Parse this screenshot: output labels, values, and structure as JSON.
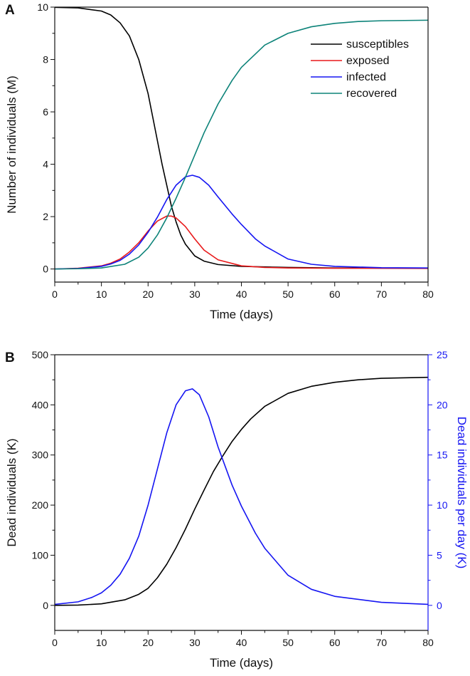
{
  "chart_data": [
    {
      "panel": "A",
      "type": "line",
      "xlabel": "Time (days)",
      "ylabel": "Number of individuals (M)",
      "xlim": [
        0,
        80
      ],
      "ylim": [
        -0.5,
        10
      ],
      "xticks": [
        0,
        10,
        20,
        30,
        40,
        50,
        60,
        70,
        80
      ],
      "yticks": [
        0,
        2,
        4,
        6,
        8,
        10
      ],
      "grid": false,
      "legend_position": "top-right",
      "series": [
        {
          "name": "susceptibles",
          "color": "#000000",
          "x": [
            0,
            5,
            10,
            12,
            14,
            16,
            18,
            20,
            21,
            22,
            23,
            24,
            25,
            26,
            27,
            28,
            30,
            32,
            35,
            40,
            50,
            60,
            80
          ],
          "y": [
            9.99,
            9.97,
            9.85,
            9.7,
            9.4,
            8.9,
            8.0,
            6.7,
            5.8,
            4.9,
            4.0,
            3.2,
            2.4,
            1.8,
            1.3,
            0.95,
            0.5,
            0.3,
            0.17,
            0.1,
            0.06,
            0.04,
            0.03
          ]
        },
        {
          "name": "exposed",
          "color": "#e8191a",
          "x": [
            0,
            5,
            10,
            12,
            14,
            16,
            18,
            20,
            22,
            24,
            25,
            26,
            28,
            30,
            32,
            35,
            40,
            45,
            50,
            60,
            80
          ],
          "y": [
            0.0,
            0.03,
            0.12,
            0.22,
            0.38,
            0.65,
            1.0,
            1.45,
            1.83,
            2.02,
            2.02,
            1.95,
            1.62,
            1.15,
            0.72,
            0.35,
            0.12,
            0.06,
            0.04,
            0.03,
            0.02
          ]
        },
        {
          "name": "infected",
          "color": "#1515f2",
          "x": [
            0,
            5,
            10,
            12,
            14,
            16,
            18,
            20,
            22,
            24,
            26,
            28,
            29.5,
            31,
            33,
            35,
            38,
            40,
            43,
            45,
            50,
            55,
            60,
            70,
            80
          ],
          "y": [
            0.0,
            0.02,
            0.1,
            0.19,
            0.33,
            0.57,
            0.92,
            1.4,
            1.98,
            2.65,
            3.2,
            3.52,
            3.58,
            3.5,
            3.2,
            2.75,
            2.1,
            1.7,
            1.15,
            0.88,
            0.38,
            0.18,
            0.1,
            0.05,
            0.04
          ]
        },
        {
          "name": "recovered",
          "color": "#0d8379",
          "x": [
            0,
            5,
            10,
            15,
            18,
            20,
            22,
            24,
            26,
            28,
            30,
            32,
            35,
            38,
            40,
            45,
            50,
            55,
            60,
            65,
            70,
            80
          ],
          "y": [
            0.0,
            0.01,
            0.04,
            0.18,
            0.45,
            0.8,
            1.3,
            1.95,
            2.7,
            3.5,
            4.35,
            5.2,
            6.3,
            7.2,
            7.7,
            8.55,
            9.0,
            9.25,
            9.38,
            9.45,
            9.48,
            9.5
          ]
        }
      ]
    },
    {
      "panel": "B",
      "type": "line",
      "xlabel": "Time (days)",
      "ylabel": "Dead individuals (K)",
      "ylabel_right": "Dead individuals per day (K)",
      "xlim": [
        0,
        80
      ],
      "ylim": [
        -50,
        500
      ],
      "ylim_right": [
        -2.5,
        25
      ],
      "xticks": [
        0,
        10,
        20,
        30,
        40,
        50,
        60,
        70,
        80
      ],
      "yticks": [
        0,
        100,
        200,
        300,
        400,
        500
      ],
      "yticks_right": [
        0,
        5,
        10,
        15,
        20,
        25
      ],
      "right_axis_color": "#1515f2",
      "grid": false,
      "series": [
        {
          "axis": "left",
          "color": "#000000",
          "x": [
            0,
            5,
            10,
            15,
            18,
            20,
            22,
            24,
            26,
            28,
            30,
            32,
            34,
            36,
            38,
            40,
            42,
            45,
            50,
            55,
            60,
            65,
            70,
            80
          ],
          "y": [
            0,
            0.5,
            3,
            11,
            22,
            34,
            55,
            82,
            115,
            152,
            192,
            230,
            267,
            298,
            327,
            351,
            372,
            397,
            423,
            437,
            445,
            450,
            453,
            455
          ]
        },
        {
          "axis": "right",
          "color": "#1515f2",
          "x": [
            0,
            5,
            8,
            10,
            12,
            14,
            16,
            18,
            20,
            22,
            24,
            26,
            28,
            29.5,
            31,
            33,
            35,
            38,
            40,
            43,
            45,
            50,
            55,
            60,
            70,
            80
          ],
          "y": [
            0.1,
            0.35,
            0.8,
            1.25,
            2.0,
            3.1,
            4.7,
            6.9,
            10.0,
            13.6,
            17.2,
            20.0,
            21.4,
            21.6,
            21.0,
            18.8,
            15.8,
            12.0,
            9.9,
            7.2,
            5.7,
            3.0,
            1.6,
            0.9,
            0.3,
            0.1
          ]
        }
      ]
    }
  ]
}
